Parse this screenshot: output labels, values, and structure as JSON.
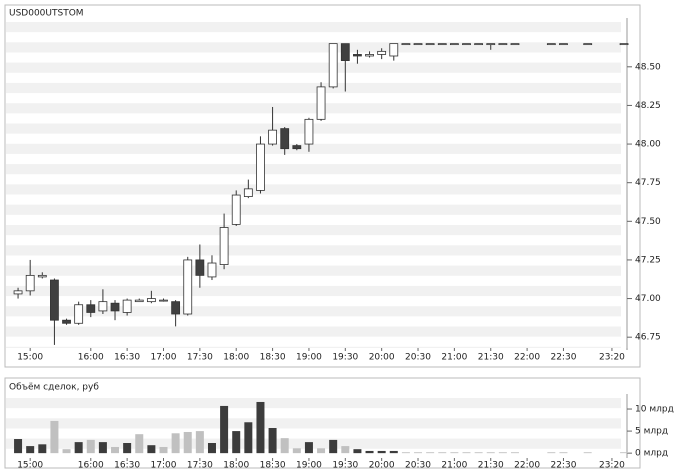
{
  "chart_data": [
    {
      "type": "candlestick",
      "title": "USD000UTSTOM",
      "categories": [
        null,
        "15:00",
        null,
        null,
        null,
        null,
        "16:00",
        null,
        null,
        "16:30",
        null,
        null,
        "17:00",
        null,
        null,
        "17:30",
        null,
        null,
        "18:00",
        null,
        null,
        "18:30",
        null,
        null,
        "19:00",
        null,
        null,
        "19:30",
        null,
        null,
        "20:00",
        null,
        null,
        "20:30",
        null,
        null,
        "21:00",
        null,
        null,
        "21:30",
        null,
        null,
        "22:00",
        null,
        null,
        "22:30",
        null,
        null,
        null,
        "23:20",
        null
      ],
      "open": [
        47.03,
        47.05,
        47.14,
        47.12,
        46.86,
        46.84,
        46.96,
        46.92,
        46.97,
        46.91,
        46.98,
        46.98,
        46.99,
        46.98,
        46.9,
        47.25,
        47.14,
        47.22,
        47.48,
        47.66,
        47.7,
        48.0,
        48.1,
        47.99,
        48.0,
        48.16,
        48.37,
        48.65,
        48.58,
        48.57,
        48.58,
        48.57,
        48.65,
        48.65,
        48.65,
        48.65,
        48.65,
        48.65,
        48.65,
        48.65,
        48.65,
        48.65,
        null,
        null,
        48.65,
        48.65,
        null,
        48.65,
        null,
        null,
        48.65
      ],
      "high": [
        47.07,
        47.25,
        47.17,
        47.13,
        46.87,
        46.98,
        46.99,
        47.06,
        46.99,
        47.0,
        47.0,
        47.05,
        47.0,
        46.99,
        47.27,
        47.35,
        47.28,
        47.55,
        47.7,
        47.77,
        48.05,
        48.24,
        48.11,
        48.0,
        48.17,
        48.4,
        48.65,
        48.65,
        48.61,
        48.6,
        48.62,
        48.65,
        48.65,
        48.65,
        48.65,
        48.65,
        48.65,
        48.65,
        48.65,
        48.65,
        48.65,
        48.65,
        null,
        null,
        48.65,
        48.65,
        null,
        48.65,
        null,
        null,
        48.65
      ],
      "low": [
        47.0,
        47.02,
        47.13,
        46.7,
        46.83,
        46.83,
        46.88,
        46.9,
        46.86,
        46.89,
        46.98,
        46.97,
        46.98,
        46.82,
        46.89,
        47.07,
        47.12,
        47.19,
        47.47,
        47.65,
        47.68,
        47.99,
        47.93,
        47.96,
        47.95,
        48.15,
        48.36,
        48.34,
        48.52,
        48.56,
        48.55,
        48.54,
        48.65,
        48.65,
        48.65,
        48.65,
        48.65,
        48.65,
        48.65,
        48.61,
        48.65,
        48.65,
        null,
        null,
        48.65,
        48.65,
        null,
        48.65,
        null,
        null,
        48.65
      ],
      "close": [
        47.05,
        47.15,
        47.15,
        46.86,
        46.84,
        46.96,
        46.91,
        46.98,
        46.92,
        46.99,
        46.99,
        47.0,
        46.99,
        46.9,
        47.25,
        47.15,
        47.23,
        47.46,
        47.67,
        47.71,
        48.0,
        48.09,
        47.97,
        47.97,
        48.16,
        48.37,
        48.65,
        48.54,
        48.57,
        48.58,
        48.6,
        48.65,
        48.65,
        48.65,
        48.65,
        48.65,
        48.65,
        48.65,
        48.65,
        48.65,
        48.65,
        48.65,
        null,
        null,
        48.65,
        48.65,
        null,
        48.65,
        null,
        null,
        48.65
      ],
      "up_color": "#ffffff",
      "down_color": "#404040",
      "ylim": [
        46.68,
        48.79
      ],
      "yticks": [
        46.75,
        {
          "value": 47,
          "label": "47.00"
        },
        47.25,
        {
          "value": 47.5,
          "label": "47.50"
        },
        47.75,
        {
          "value": 48,
          "label": "48.00"
        },
        48.25,
        {
          "value": 48.5,
          "label": "48.50"
        }
      ]
    },
    {
      "type": "bar",
      "title": "Объём сделок, руб",
      "categories": [
        null,
        "15:00",
        null,
        null,
        null,
        null,
        "16:00",
        null,
        null,
        "16:30",
        null,
        null,
        "17:00",
        null,
        null,
        "17:30",
        null,
        null,
        "18:00",
        null,
        null,
        "18:30",
        null,
        null,
        "19:00",
        null,
        null,
        "19:30",
        null,
        null,
        "20:00",
        null,
        null,
        "20:30",
        null,
        null,
        "21:00",
        null,
        null,
        "21:30",
        null,
        null,
        "22:00",
        null,
        null,
        "22:30",
        null,
        null,
        null,
        "23:20",
        null
      ],
      "values": [
        3.2,
        1.6,
        2.0,
        7.3,
        0.9,
        2.5,
        3.0,
        2.5,
        1.4,
        2.3,
        4.3,
        1.8,
        1.4,
        4.5,
        4.8,
        5.0,
        2.3,
        10.7,
        5.0,
        7.0,
        11.6,
        5.7,
        3.4,
        1.1,
        2.5,
        1.1,
        3.0,
        1.6,
        0.9,
        0.5,
        0.5,
        0.5,
        0.2,
        0.2,
        0.2,
        0.2,
        0.2,
        0.2,
        0.2,
        0.2,
        0.2,
        0.2,
        null,
        null,
        0.2,
        0.2,
        null,
        0.2,
        null,
        null,
        0.2
      ],
      "colors": [
        "#3c3c3c",
        "#3c3c3c",
        "#3c3c3c",
        "#c0c0c0",
        "#c0c0c0",
        "#3c3c3c",
        "#c0c0c0",
        "#3c3c3c",
        "#c0c0c0",
        "#3c3c3c",
        "#c0c0c0",
        "#3c3c3c",
        "#c0c0c0",
        "#c0c0c0",
        "#c0c0c0",
        "#c0c0c0",
        "#3c3c3c",
        "#3c3c3c",
        "#3c3c3c",
        "#3c3c3c",
        "#3c3c3c",
        "#3c3c3c",
        "#c0c0c0",
        "#c0c0c0",
        "#3c3c3c",
        "#c0c0c0",
        "#3c3c3c",
        "#c0c0c0",
        "#3c3c3c",
        "#3c3c3c",
        "#3c3c3c",
        "#3c3c3c",
        "#c0c0c0",
        "#c0c0c0",
        "#c0c0c0",
        "#c0c0c0",
        "#c0c0c0",
        "#c0c0c0",
        "#c0c0c0",
        "#c0c0c0",
        "#c0c0c0",
        "#c0c0c0",
        null,
        null,
        "#c0c0c0",
        "#c0c0c0",
        null,
        "#c0c0c0",
        null,
        null,
        "#c0c0c0"
      ],
      "ylim": [
        -1.1,
        12.5
      ],
      "yticks": [
        {
          "value": 0,
          "label": "0 млрд"
        },
        {
          "value": 5,
          "label": "5 млрд"
        },
        {
          "value": 10,
          "label": "10 млрд"
        }
      ]
    }
  ]
}
